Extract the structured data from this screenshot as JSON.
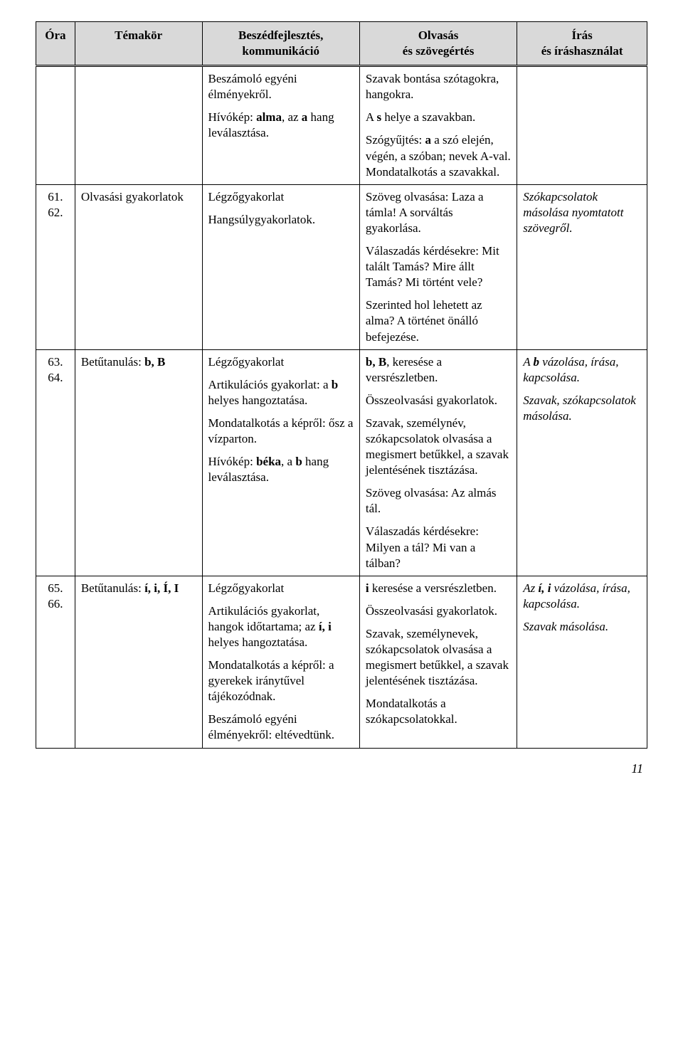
{
  "header": {
    "col1_line1": "Óra",
    "col2_line1": "Témakör",
    "col3_line1": "Beszédfejlesztés,",
    "col3_line2": "kommunikáció",
    "col4_line1": "Olvasás",
    "col4_line2": "és szövegértés",
    "col5_line1": "Írás",
    "col5_line2": "és íráshasználat"
  },
  "rows": [
    {
      "ora": "",
      "tema": "",
      "beszed": [
        {
          "t": "Beszámoló egyéni élményekről."
        },
        {
          "pre": "Hívókép: ",
          "b1": "alma",
          "mid": ", az ",
          "b2": "a",
          "post": " hang leválasztása."
        }
      ],
      "olvasas": [
        {
          "t": "Szavak bontása szótagokra, hangokra."
        },
        {
          "pre": "A ",
          "b1": "s",
          "post": " helye a szavakban."
        },
        {
          "pre": "Szógyűjtés: ",
          "b1": "a",
          "post": " a szó elején, végén, a szóban; nevek A-val. Mondatalkotás a szavakkal."
        }
      ],
      "iras": []
    },
    {
      "ora": "61.\n62.",
      "tema": "Olvasási gyakorlatok",
      "beszed": [
        {
          "t": "Légzőgyakorlat"
        },
        {
          "t": "Hangsúlygyakorlatok."
        }
      ],
      "olvasas": [
        {
          "t": "Szöveg olvasása: Laza a támla! A sorváltás gyakorlása."
        },
        {
          "t": "Válaszadás kérdésekre: Mit talált Tamás? Mire állt Tamás? Mi történt vele?"
        },
        {
          "t": "Szerinted hol lehetett az alma? A történet önálló befejezése."
        }
      ],
      "iras_italic": "Szókapcsolatok másolása nyomtatott szövegről."
    },
    {
      "ora": "63.\n64.",
      "tema_pre": "Betűtanulás: ",
      "tema_b": "b, B",
      "beszed": [
        {
          "t": "Légzőgyakorlat"
        },
        {
          "pre": "Artikulációs gyakorlat: a ",
          "b1": "b",
          "post": " helyes hangoztatása."
        },
        {
          "t": "Mondatalkotás a képről: ősz a vízparton."
        },
        {
          "pre": "Hívókép: ",
          "b1": "béka",
          "mid": ", a ",
          "b2": "b",
          "post": " hang leválasztása."
        }
      ],
      "olvasas": [
        {
          "b1": "b, B",
          "post": ", keresése a versrészletben."
        },
        {
          "t": "Összeolvasási gyakorlatok."
        },
        {
          "t": "Szavak, személynév, szókapcsolatok olvasása a megismert betűkkel, a szavak jelentésének tisztázása."
        },
        {
          "t": "Szöveg olvasása: Az almás tál."
        },
        {
          "t": "Válaszadás kérdésekre: Milyen a tál? Mi van a tálban?"
        }
      ],
      "iras_mixed": {
        "p1_pre": "A ",
        "p1_bi": "b",
        "p1_post": " vázolása, írása, kapcsolása.",
        "p2": "Szavak, szókapcsolatok másolása."
      }
    },
    {
      "ora": "65.\n66.",
      "tema_pre": "Betűtanulás: ",
      "tema_b": "í, i, Í, I",
      "beszed": [
        {
          "t": "Légzőgyakorlat"
        },
        {
          "pre": "Artikulációs gyakorlat, hangok időtartama; az ",
          "b1": "í, i",
          "post": " helyes hangoztatása."
        },
        {
          "t": "Mondatalkotás a képről: a gyerekek iránytűvel tájékozódnak."
        },
        {
          "t": "Beszámoló egyéni élményekről: eltévedtünk."
        }
      ],
      "olvasas": [
        {
          "b1": "i",
          "post": " keresése a versrészletben."
        },
        {
          "t": "Összeolvasási gyakorlatok."
        },
        {
          "t": "Szavak, személynevek, szókapcsolatok olvasása a megismert betűkkel, a szavak jelentésének tisztázása."
        },
        {
          "t": "Mondatalkotás a szókapcsolatokkal."
        }
      ],
      "iras_mixed": {
        "p1_pre": "Az ",
        "p1_bi": "í, i",
        "p1_post": " vázolása, írása, kapcsolása.",
        "p2": "Szavak másolása."
      }
    }
  ],
  "pagenum": "11"
}
